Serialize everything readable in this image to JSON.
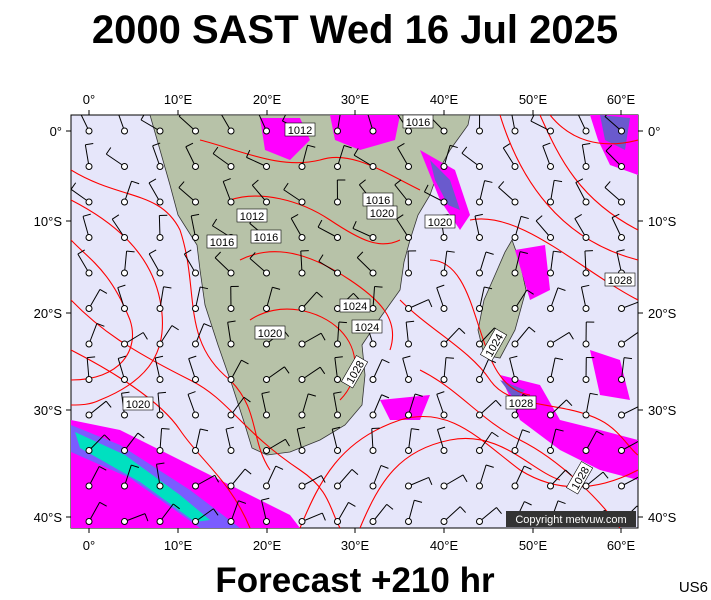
{
  "header": {
    "title": "2000 SAST Wed 16 Jul 2025"
  },
  "axes": {
    "longitudes": [
      "0°",
      "10°E",
      "20°E",
      "30°E",
      "40°E",
      "50°E",
      "60°E"
    ],
    "latitudes": [
      "0°",
      "10°S",
      "20°S",
      "30°S",
      "40°S"
    ]
  },
  "isobar_labels": [
    "1012",
    "1016",
    "1016",
    "1020",
    "1012",
    "1016",
    "1016",
    "1020",
    "1024",
    "1024",
    "1020",
    "1028",
    "1020",
    "1028",
    "1024",
    "1028",
    "1028"
  ],
  "footer": {
    "forecast": "Forecast +210 hr",
    "code": "US6",
    "copyright": "Copyright metvuw.com"
  }
}
